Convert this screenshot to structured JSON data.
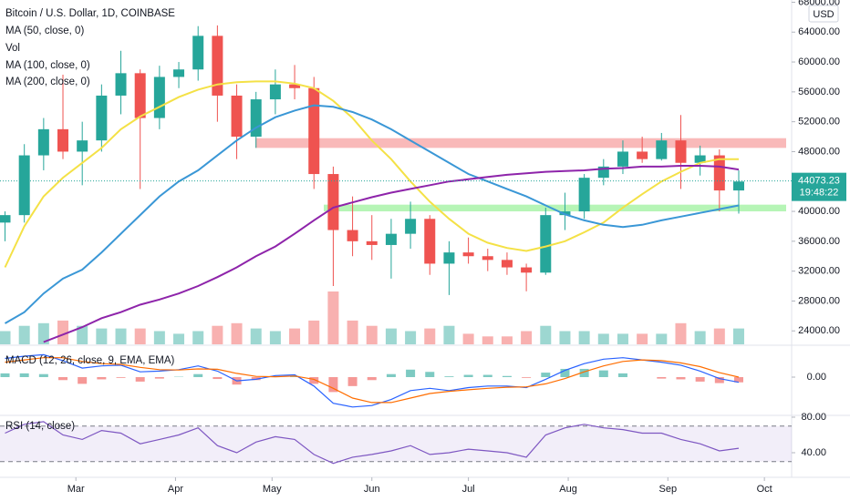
{
  "chart_data": {
    "type": "candlestick",
    "title": "Bitcoin / U.S. Dollar, 1D, COINBASE",
    "currency": "USD",
    "xlim": [
      -0.26,
      40.74
    ],
    "xticks": [
      {
        "value": 3.67,
        "label": "Mar"
      },
      {
        "value": 8.83,
        "label": "Apr"
      },
      {
        "value": 13.83,
        "label": "May"
      },
      {
        "value": 19,
        "label": "Jun"
      },
      {
        "value": 24,
        "label": "Jul"
      },
      {
        "value": 29.17,
        "label": "Aug"
      },
      {
        "value": 34.33,
        "label": "Sep"
      },
      {
        "value": 39.33,
        "label": "Oct"
      }
    ],
    "ylim": [
      22200,
      68300
    ],
    "yticks": [
      {
        "value": 24000,
        "label": "24000.00"
      },
      {
        "value": 28000,
        "label": "28000.00"
      },
      {
        "value": 32000,
        "label": "32000.00"
      },
      {
        "value": 36000,
        "label": "36000.00"
      },
      {
        "value": 40000,
        "label": "40000.00"
      },
      {
        "value": 44000,
        "label": "44000.00"
      },
      {
        "value": 48000,
        "label": "48000.00"
      },
      {
        "value": 52000,
        "label": "52000.00"
      },
      {
        "value": 56000,
        "label": "56000.00"
      },
      {
        "value": 60000,
        "label": "60000.00"
      },
      {
        "value": 64000,
        "label": "64000.00"
      },
      {
        "value": 68000,
        "label": "68000.00"
      }
    ],
    "open": [
      38500,
      39500,
      47500,
      51000,
      48000,
      49500,
      55500,
      58500,
      52500,
      58000,
      59000,
      63500,
      55500,
      50000,
      55000,
      57000,
      56500,
      45000,
      37500,
      36000,
      35500,
      37000,
      39000,
      33000,
      34500,
      34000,
      33500,
      32500,
      31800,
      39500,
      40000,
      44500,
      46000,
      48000,
      47000,
      49500,
      46500,
      47500,
      42800
    ],
    "high": [
      40000,
      49000,
      52500,
      58300,
      52000,
      57000,
      61500,
      59000,
      59500,
      60000,
      64800,
      64900,
      57000,
      56000,
      59000,
      59600,
      58000,
      46000,
      42000,
      39500,
      39000,
      41300,
      39500,
      36000,
      36500,
      35000,
      34500,
      33000,
      40500,
      42500,
      45000,
      47000,
      49500,
      50000,
      50500,
      52900,
      48800,
      48300,
      45500
    ],
    "low": [
      36000,
      38500,
      45500,
      47000,
      43500,
      48000,
      53000,
      43000,
      51000,
      56500,
      57500,
      52000,
      47000,
      48500,
      53000,
      55000,
      43000,
      30000,
      34000,
      33500,
      31000,
      35000,
      31500,
      28800,
      33000,
      32000,
      31500,
      29300,
      31500,
      37500,
      39000,
      43500,
      45000,
      46500,
      46800,
      43000,
      44800,
      40000,
      39700
    ],
    "close": [
      39500,
      47500,
      51000,
      48000,
      49500,
      55500,
      58500,
      52500,
      58000,
      59000,
      63500,
      55500,
      50000,
      55000,
      57000,
      56500,
      45000,
      37500,
      36000,
      35500,
      37000,
      39000,
      33000,
      34500,
      34000,
      33500,
      32500,
      31800,
      39500,
      40000,
      44500,
      46000,
      48000,
      47000,
      49500,
      46500,
      47500,
      42800,
      44000
    ],
    "up_color": "#26a69a",
    "down_color": "#ef5350",
    "volume": {
      "name": "Vol",
      "ylim": [
        0,
        100
      ],
      "values": [
        25,
        35,
        40,
        45,
        35,
        30,
        30,
        30,
        25,
        20,
        25,
        35,
        40,
        30,
        25,
        30,
        45,
        100,
        45,
        35,
        30,
        25,
        30,
        35,
        20,
        15,
        15,
        25,
        35,
        25,
        25,
        20,
        20,
        20,
        20,
        40,
        25,
        30,
        30
      ]
    },
    "series": [
      {
        "name": "MA (50, close, 0)",
        "color": "#f4e146",
        "values": [
          32500,
          38000,
          42000,
          44500,
          46500,
          48500,
          51000,
          52700,
          54000,
          55300,
          56300,
          57000,
          57300,
          57400,
          57400,
          57100,
          56500,
          54800,
          52500,
          49500,
          47000,
          44000,
          41300,
          39000,
          37000,
          35800,
          35100,
          34700,
          35300,
          36000,
          37200,
          38500,
          40500,
          42300,
          44000,
          45300,
          46500,
          47000,
          47000
        ]
      },
      {
        "name": "MA (100, close, 0)",
        "color": "#3a97d6",
        "values": [
          25000,
          26500,
          29000,
          31000,
          32200,
          34500,
          37000,
          39500,
          42000,
          44000,
          45500,
          47500,
          49500,
          51200,
          52600,
          53500,
          54200,
          54000,
          53300,
          52300,
          51000,
          49500,
          48000,
          46500,
          45000,
          44000,
          43000,
          42000,
          40800,
          39600,
          38800,
          38200,
          37900,
          38200,
          38800,
          39300,
          39800,
          40300,
          40800
        ]
      },
      {
        "name": "MA (200, close, 0)",
        "color": "#8e24aa",
        "values": [
          null,
          null,
          22500,
          23500,
          24500,
          25700,
          26500,
          27500,
          28200,
          29000,
          30000,
          31200,
          32500,
          34000,
          35300,
          37000,
          38800,
          40500,
          41200,
          41900,
          42500,
          43000,
          43500,
          44000,
          44300,
          44600,
          44900,
          45100,
          45300,
          45400,
          45500,
          45700,
          45800,
          46000,
          46000,
          46100,
          46100,
          46000,
          45600
        ]
      }
    ],
    "zones": [
      {
        "from": 48500,
        "to": 49800,
        "color": "#f7a1a1"
      },
      {
        "from": 40000,
        "to": 40900,
        "color": "#9ef29e"
      }
    ],
    "last_price": 44073.23,
    "countdown": "19:48:22",
    "macd": {
      "name": "MACD (12, 26, close, 9, EMA, EMA)",
      "ylim": [
        -5000,
        3900
      ],
      "yticks": [
        {
          "value": 0,
          "label": "0.00"
        }
      ],
      "macd_color": "#2962ff",
      "signal_color": "#ff6d00",
      "macd": [
        2500,
        2800,
        3000,
        2200,
        1200,
        1500,
        1600,
        700,
        800,
        1000,
        1500,
        800,
        -500,
        -300,
        200,
        300,
        -1200,
        -3500,
        -4000,
        -3800,
        -3000,
        -1800,
        -1500,
        -1800,
        -1400,
        -1200,
        -1200,
        -1400,
        -300,
        900,
        1800,
        2400,
        2600,
        2300,
        2000,
        1600,
        800,
        -200,
        -700
      ],
      "signal": [
        2000,
        2300,
        2600,
        2600,
        2100,
        1800,
        1700,
        1300,
        1000,
        950,
        1100,
        1050,
        500,
        100,
        50,
        150,
        -300,
        -1500,
        -2800,
        -3400,
        -3400,
        -2800,
        -2200,
        -1900,
        -1700,
        -1500,
        -1350,
        -1300,
        -900,
        -200,
        700,
        1500,
        2100,
        2300,
        2200,
        1900,
        1400,
        600,
        0
      ],
      "histogram": [
        500,
        500,
        400,
        -400,
        -900,
        -300,
        -100,
        -600,
        -200,
        50,
        400,
        -250,
        -1000,
        -400,
        150,
        150,
        -900,
        -2000,
        -1200,
        -400,
        400,
        1000,
        700,
        100,
        300,
        300,
        150,
        -100,
        600,
        1100,
        1100,
        900,
        500,
        0,
        -200,
        -300,
        -600,
        -800,
        -700
      ]
    },
    "rsi": {
      "name": "RSI (14, close)",
      "color": "#7e57c2",
      "ylim": [
        16.4,
        81
      ],
      "yticks": [
        {
          "value": 80,
          "label": "80.00"
        },
        {
          "value": 40,
          "label": "40.00"
        }
      ],
      "bands": [
        30,
        70
      ],
      "values": [
        62,
        72,
        75,
        60,
        55,
        65,
        62,
        50,
        55,
        60,
        68,
        48,
        40,
        52,
        58,
        55,
        38,
        28,
        35,
        38,
        42,
        48,
        38,
        40,
        44,
        42,
        40,
        35,
        60,
        68,
        72,
        68,
        66,
        62,
        62,
        55,
        50,
        42,
        45
      ]
    }
  }
}
